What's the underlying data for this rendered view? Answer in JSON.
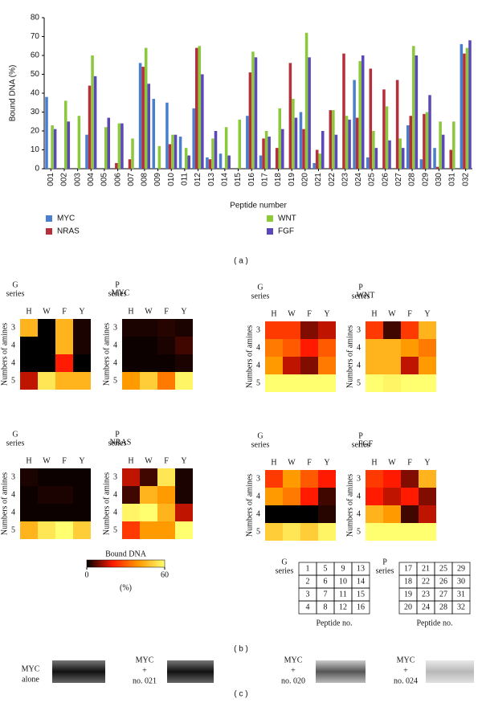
{
  "chart_data": [
    {
      "type": "bar",
      "y_label": "Bound DNA (%)",
      "x_label": "Peptide number",
      "categories": [
        "001",
        "002",
        "003",
        "004",
        "005",
        "006",
        "007",
        "008",
        "009",
        "010",
        "011",
        "012",
        "013",
        "014",
        "015",
        "016",
        "017",
        "018",
        "019",
        "020",
        "021",
        "022",
        "023",
        "024",
        "025",
        "026",
        "027",
        "028",
        "029",
        "030",
        "031",
        "032"
      ],
      "series": [
        {
          "name": "MYC",
          "color": "#4a7fcf",
          "values": [
            38,
            0,
            0,
            18,
            0,
            0,
            0,
            56,
            37,
            35,
            17,
            32,
            6,
            8,
            0,
            28,
            7,
            0,
            0,
            30,
            3,
            0,
            0,
            47,
            6,
            0,
            0,
            23,
            5,
            11,
            0,
            66
          ]
        },
        {
          "name": "NRAS",
          "color": "#b5303a",
          "values": [
            0,
            0,
            0,
            44,
            0,
            3,
            5,
            54,
            0,
            13,
            0,
            64,
            5,
            0,
            0,
            51,
            16,
            11,
            56,
            21,
            10,
            31,
            61,
            27,
            53,
            42,
            47,
            28,
            29,
            1,
            10,
            61
          ]
        },
        {
          "name": "WNT",
          "color": "#8cc83c",
          "values": [
            23,
            36,
            28,
            60,
            22,
            24,
            16,
            64,
            12,
            18,
            11,
            65,
            16,
            22,
            26,
            62,
            20,
            32,
            37,
            72,
            8,
            31,
            28,
            57,
            20,
            33,
            16,
            65,
            30,
            25,
            25,
            64
          ]
        },
        {
          "name": "FGF",
          "color": "#5a48b8",
          "values": [
            21,
            25,
            0,
            49,
            27,
            24,
            0,
            45,
            0,
            18,
            7,
            50,
            20,
            7,
            0,
            59,
            17,
            21,
            27,
            59,
            20,
            18,
            26,
            60,
            11,
            15,
            11,
            60,
            39,
            18,
            0,
            68
          ]
        }
      ],
      "ylim": [
        0,
        80
      ],
      "yticks": [
        0,
        10,
        20,
        30,
        40,
        50,
        60,
        70,
        80
      ]
    },
    {
      "type": "heatmap",
      "title": "MYC",
      "series_label": [
        "G",
        "series"
      ],
      "y_label": "Numbers of amines",
      "x": [
        "H",
        "W",
        "F",
        "Y"
      ],
      "y": [
        3,
        4,
        4,
        5
      ],
      "values": [
        [
          45,
          0,
          45,
          2
        ],
        [
          0,
          0,
          45,
          2
        ],
        [
          0,
          0,
          20,
          0
        ],
        [
          15,
          55,
          45,
          45
        ]
      ]
    },
    {
      "type": "heatmap",
      "series_label": [
        "P",
        "series"
      ],
      "y_label": "Numbers of amines",
      "x": [
        "H",
        "W",
        "F",
        "Y"
      ],
      "y": [
        3,
        4,
        4,
        5
      ],
      "values": [
        [
          2,
          2,
          3,
          2
        ],
        [
          1,
          1,
          2,
          5
        ],
        [
          1,
          1,
          1,
          2
        ],
        [
          40,
          50,
          35,
          58
        ]
      ]
    },
    {
      "type": "heatmap",
      "title": "WNT",
      "series_label": [
        "G",
        "series"
      ],
      "y_label": "Numbers of amines",
      "x": [
        "H",
        "W",
        "F",
        "Y"
      ],
      "y": [
        3,
        4,
        4,
        5
      ],
      "values": [
        [
          25,
          25,
          10,
          15
        ],
        [
          35,
          30,
          20,
          30
        ],
        [
          40,
          15,
          10,
          35
        ],
        [
          60,
          60,
          60,
          60
        ]
      ]
    },
    {
      "type": "heatmap",
      "series_label": [
        "P",
        "series"
      ],
      "y_label": "Numbers of amines",
      "x": [
        "H",
        "W",
        "F",
        "Y"
      ],
      "y": [
        3,
        4,
        4,
        5
      ],
      "values": [
        [
          25,
          5,
          25,
          45
        ],
        [
          45,
          45,
          40,
          35
        ],
        [
          45,
          45,
          15,
          40
        ],
        [
          60,
          58,
          60,
          60
        ]
      ]
    },
    {
      "type": "heatmap",
      "title": "NRAS",
      "series_label": [
        "G",
        "series"
      ],
      "y_label": "Numbers of amines",
      "x": [
        "H",
        "W",
        "F",
        "Y"
      ],
      "y": [
        3,
        4,
        4,
        5
      ],
      "values": [
        [
          2,
          1,
          1,
          1
        ],
        [
          1,
          2,
          2,
          1
        ],
        [
          1,
          1,
          1,
          1
        ],
        [
          45,
          55,
          60,
          50
        ]
      ]
    },
    {
      "type": "heatmap",
      "series_label": [
        "P",
        "series"
      ],
      "y_label": "Numbers of amines",
      "x": [
        "H",
        "W",
        "F",
        "Y"
      ],
      "y": [
        3,
        4,
        4,
        5
      ],
      "values": [
        [
          15,
          5,
          55,
          2
        ],
        [
          5,
          45,
          40,
          2
        ],
        [
          58,
          60,
          45,
          15
        ],
        [
          25,
          40,
          40,
          60
        ]
      ]
    },
    {
      "type": "heatmap",
      "title": "FGF",
      "series_label": [
        "G",
        "series"
      ],
      "y_label": "Numbers of amines",
      "x": [
        "H",
        "W",
        "F",
        "Y"
      ],
      "y": [
        3,
        4,
        4,
        5
      ],
      "values": [
        [
          25,
          40,
          30,
          20
        ],
        [
          40,
          35,
          20,
          5
        ],
        [
          0,
          0,
          0,
          3
        ],
        [
          50,
          55,
          50,
          58
        ]
      ]
    },
    {
      "type": "heatmap",
      "series_label": [
        "P",
        "series"
      ],
      "y_label": "Numbers of amines",
      "x": [
        "H",
        "W",
        "F",
        "Y"
      ],
      "y": [
        3,
        4,
        4,
        5
      ],
      "values": [
        [
          25,
          20,
          10,
          45
        ],
        [
          20,
          15,
          20,
          10
        ],
        [
          45,
          40,
          5,
          15
        ],
        [
          60,
          60,
          60,
          60
        ]
      ]
    }
  ],
  "colorbar": {
    "title": "Bound DNA",
    "unit": "(%)",
    "range": [
      0,
      60
    ],
    "ticks": [
      0,
      60
    ],
    "colormap": [
      "#000000",
      "#ff1a00",
      "#ff9a00",
      "#ffff70"
    ]
  },
  "peptide_tables": [
    {
      "series_label": [
        "G",
        "series"
      ],
      "rows": [
        [
          1,
          5,
          9,
          13
        ],
        [
          2,
          6,
          10,
          14
        ],
        [
          3,
          7,
          11,
          15
        ],
        [
          4,
          8,
          12,
          16
        ]
      ],
      "caption": "Peptide no."
    },
    {
      "series_label": [
        "P",
        "series"
      ],
      "rows": [
        [
          17,
          21,
          25,
          29
        ],
        [
          18,
          22,
          26,
          30
        ],
        [
          19,
          23,
          27,
          31
        ],
        [
          20,
          24,
          28,
          32
        ]
      ],
      "caption": "Peptide no."
    }
  ],
  "gels": [
    {
      "lines": [
        "MYC",
        "alone"
      ]
    },
    {
      "lines": [
        "MYC",
        "+",
        "no. 021"
      ]
    },
    {
      "lines": [
        "MYC",
        "+",
        "no. 020"
      ]
    },
    {
      "lines": [
        "MYC",
        "+",
        "no. 024"
      ]
    }
  ],
  "panel_labels": [
    "( a )",
    "( b )",
    "( c )"
  ]
}
